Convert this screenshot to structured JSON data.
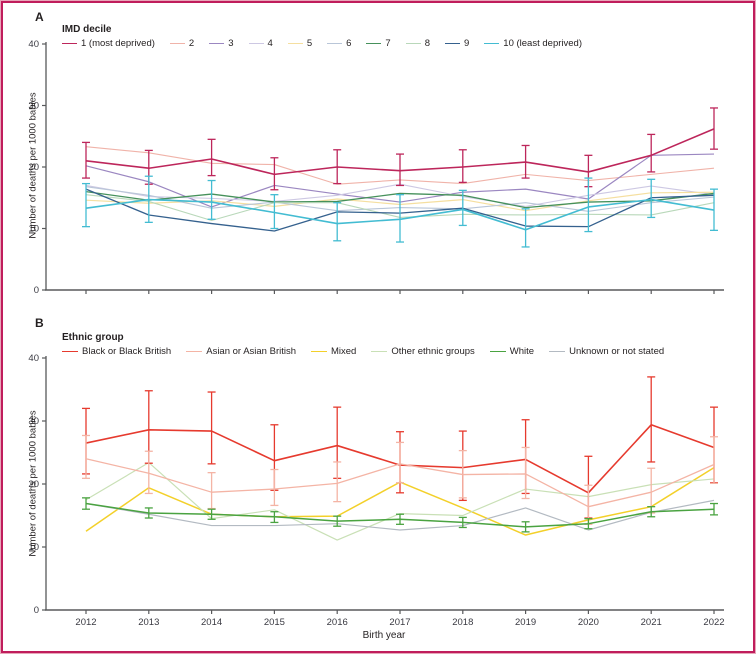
{
  "figure": {
    "x_axis_label": "Birth year",
    "y_axis_label": "Number of deaths per 1000 babies",
    "accent_border_color": "#c01d5c",
    "axis_color": "#58595b",
    "tick_text_color": "#3a3a42"
  },
  "chart_data": [
    {
      "type": "line",
      "panel_label": "A",
      "legend_title": "IMD decile",
      "xlabel": "Birth year",
      "ylabel": "Number of deaths per 1000 babies",
      "ylim": [
        0,
        40
      ],
      "yticks": [
        0,
        10,
        20,
        30,
        40
      ],
      "x": [
        2012,
        2013,
        2014,
        2015,
        2016,
        2017,
        2018,
        2019,
        2020,
        2021,
        2022
      ],
      "series": [
        {
          "name": "1 (most deprived)",
          "color": "#bd265b",
          "width": 1.6,
          "values": [
            21.0,
            19.8,
            21.3,
            18.8,
            20.0,
            19.4,
            20.0,
            20.8,
            19.2,
            21.9,
            26.2
          ],
          "err_lo": [
            18.2,
            17.2,
            18.6,
            16.3,
            17.3,
            17.0,
            17.5,
            18.2,
            16.8,
            19.2,
            22.9
          ],
          "err_hi": [
            24.0,
            22.7,
            24.5,
            21.5,
            22.8,
            22.1,
            22.8,
            23.5,
            21.9,
            25.3,
            29.6
          ]
        },
        {
          "name": "2",
          "color": "#f0b3a9",
          "width": 1.1,
          "values": [
            23.3,
            22.3,
            20.6,
            20.4,
            17.2,
            17.9,
            17.3,
            18.8,
            17.8,
            18.8,
            19.8
          ]
        },
        {
          "name": "3",
          "color": "#9b87c1",
          "width": 1.2,
          "values": [
            20.2,
            17.6,
            13.5,
            17.0,
            15.6,
            14.3,
            15.9,
            16.4,
            14.8,
            21.9,
            22.1
          ]
        },
        {
          "name": "4",
          "color": "#cdc8e3",
          "width": 1.1,
          "values": [
            17.0,
            15.2,
            14.9,
            14.4,
            15.4,
            17.2,
            15.2,
            13.6,
            15.4,
            16.9,
            15.5
          ]
        },
        {
          "name": "5",
          "color": "#f5dfa0",
          "width": 1.2,
          "values": [
            14.6,
            14.1,
            14.5,
            13.6,
            14.8,
            13.9,
            14.7,
            12.9,
            14.5,
            15.8,
            15.9
          ]
        },
        {
          "name": "6",
          "color": "#b9c6d8",
          "width": 1.1,
          "values": [
            16.8,
            15.4,
            13.3,
            14.3,
            12.9,
            13.4,
            13.2,
            14.2,
            12.8,
            14.2,
            15.1
          ]
        },
        {
          "name": "7",
          "color": "#46915b",
          "width": 1.3,
          "values": [
            16.0,
            14.6,
            15.6,
            14.3,
            14.4,
            15.7,
            15.4,
            13.4,
            14.3,
            14.5,
            15.7
          ]
        },
        {
          "name": "8",
          "color": "#b9d8ba",
          "width": 1.1,
          "values": [
            15.5,
            14.4,
            11.3,
            14.2,
            14.2,
            11.8,
            12.3,
            12.2,
            12.3,
            12.2,
            14.2
          ]
        },
        {
          "name": "9",
          "color": "#35618e",
          "width": 1.3,
          "values": [
            16.4,
            12.2,
            10.8,
            9.6,
            12.7,
            12.5,
            13.3,
            10.4,
            10.3,
            15.0,
            15.4
          ]
        },
        {
          "name": "10 (least deprived)",
          "color": "#43bcd2",
          "width": 1.6,
          "values": [
            13.3,
            14.7,
            14.3,
            12.6,
            10.8,
            11.5,
            13.1,
            9.8,
            13.5,
            14.7,
            13.0
          ],
          "err_lo": [
            10.3,
            11.0,
            11.5,
            10.0,
            8.0,
            7.8,
            10.5,
            7.0,
            9.5,
            11.8,
            9.7
          ],
          "err_hi": [
            17.3,
            18.5,
            17.8,
            15.5,
            14.2,
            15.5,
            16.2,
            13.2,
            18.2,
            18.0,
            16.4
          ]
        }
      ]
    },
    {
      "type": "line",
      "panel_label": "B",
      "legend_title": "Ethnic group",
      "xlabel": "Birth year",
      "ylabel": "Number of deaths per 1000 babies",
      "ylim": [
        0,
        40
      ],
      "yticks": [
        0,
        10,
        20,
        30,
        40
      ],
      "x": [
        2012,
        2013,
        2014,
        2015,
        2016,
        2017,
        2018,
        2019,
        2020,
        2021,
        2022
      ],
      "series": [
        {
          "name": "Black or Black British",
          "color": "#e63a2e",
          "width": 1.6,
          "values": [
            26.5,
            28.6,
            28.4,
            23.7,
            26.1,
            23.0,
            22.6,
            23.9,
            18.6,
            29.4,
            25.8
          ],
          "err_lo": [
            21.6,
            23.3,
            23.2,
            19.0,
            20.9,
            18.6,
            17.4,
            18.5,
            14.6,
            23.5,
            20.2
          ],
          "err_hi": [
            32.0,
            34.8,
            34.6,
            29.4,
            32.2,
            28.3,
            28.4,
            30.2,
            24.4,
            37.0,
            32.2
          ]
        },
        {
          "name": "Asian or Asian British",
          "color": "#f4b4a5",
          "width": 1.3,
          "values": [
            24.0,
            21.7,
            18.7,
            19.2,
            20.1,
            23.2,
            21.5,
            21.6,
            16.4,
            18.7,
            23.1
          ],
          "err_lo": [
            20.9,
            18.5,
            16.1,
            16.6,
            17.2,
            20.2,
            17.8,
            17.7,
            13.6,
            15.4,
            20.1
          ],
          "err_hi": [
            27.7,
            25.2,
            21.8,
            22.3,
            23.5,
            26.6,
            25.3,
            25.8,
            19.8,
            22.5,
            27.5
          ]
        },
        {
          "name": "Mixed",
          "color": "#f3d02a",
          "width": 1.5,
          "values": [
            12.5,
            19.4,
            15.2,
            14.8,
            14.9,
            20.3,
            16.2,
            11.9,
            14.3,
            16.4,
            22.6
          ]
        },
        {
          "name": "Other ethnic groups",
          "color": "#c9e0b6",
          "width": 1.2,
          "values": [
            17.5,
            23.4,
            14.5,
            15.9,
            11.1,
            15.3,
            15.0,
            19.2,
            18.0,
            19.9,
            20.8
          ]
        },
        {
          "name": "White",
          "color": "#4aa341",
          "width": 1.5,
          "values": [
            16.9,
            15.4,
            15.2,
            14.8,
            14.1,
            14.4,
            13.9,
            13.2,
            13.7,
            15.6,
            16.0
          ],
          "err_lo": [
            16.0,
            14.6,
            14.4,
            13.9,
            13.3,
            13.6,
            13.1,
            12.4,
            12.9,
            14.8,
            15.1
          ],
          "err_hi": [
            17.8,
            16.2,
            16.0,
            15.6,
            14.9,
            15.2,
            14.7,
            14.0,
            14.5,
            16.4,
            16.9
          ]
        },
        {
          "name": "Unknown or not stated",
          "color": "#b3bac2",
          "width": 1.2,
          "values": [
            16.9,
            15.2,
            13.4,
            13.4,
            13.7,
            12.7,
            13.4,
            16.2,
            12.7,
            15.5,
            17.4
          ]
        }
      ]
    }
  ]
}
